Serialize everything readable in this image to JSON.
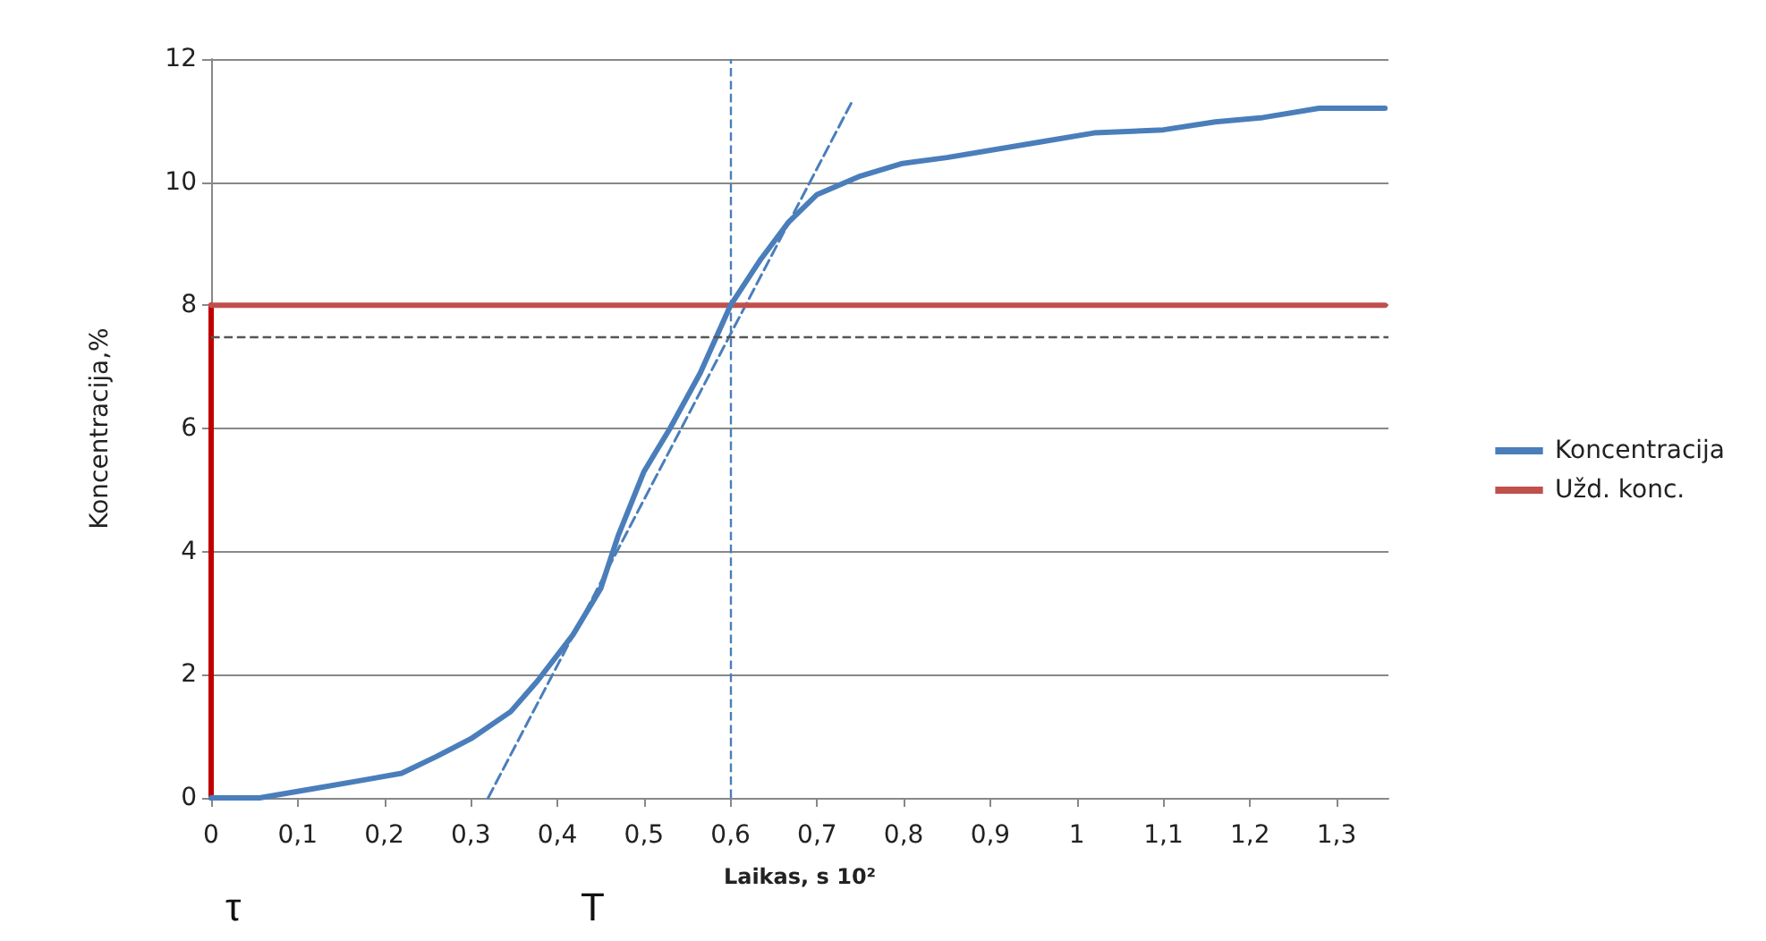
{
  "chart_data": {
    "type": "line",
    "xlabel": "Laikas, s 10²",
    "ylabel": "Koncentracija,%",
    "xlim": [
      0,
      1.36
    ],
    "xticks": [
      0,
      {
        "value": 0.1,
        "label": "0,1"
      },
      {
        "value": 0.2,
        "label": "0,2"
      },
      {
        "value": 0.3,
        "label": "0,3"
      },
      {
        "value": 0.4,
        "label": "0,4"
      },
      {
        "value": 0.5,
        "label": "0,5"
      },
      {
        "value": 0.6,
        "label": "0,6"
      },
      {
        "value": 0.7,
        "label": "0,7"
      },
      {
        "value": 0.8,
        "label": "0,8"
      },
      {
        "value": 0.9,
        "label": "0,9"
      },
      1,
      {
        "value": 1.1,
        "label": "1,1"
      },
      {
        "value": 1.2,
        "label": "1,2"
      },
      {
        "value": 1.3,
        "label": "1,3"
      }
    ],
    "ylim": [
      0,
      12
    ],
    "yticks": [
      0,
      2,
      4,
      6,
      8,
      10,
      12
    ],
    "grid": "y",
    "legend": "right",
    "marker": "none",
    "series": [
      {
        "name": "Koncentracija",
        "color": "#4a7ebb",
        "line_style": "solid",
        "x": [
          0,
          0.056,
          0.118,
          0.18,
          0.22,
          0.26,
          0.3,
          0.346,
          0.377,
          0.418,
          0.45,
          0.47,
          0.5,
          0.53,
          0.565,
          0.6,
          0.635,
          0.667,
          0.7,
          0.75,
          0.797,
          0.85,
          0.956,
          1.02,
          1.1,
          1.16,
          1.215,
          1.28,
          1.356
        ],
        "values": [
          0,
          0,
          0.15,
          0.3,
          0.4,
          0.67,
          0.96,
          1.4,
          1.9,
          2.65,
          3.4,
          4.25,
          5.3,
          6.0,
          6.9,
          8.0,
          8.75,
          9.35,
          9.8,
          10.1,
          10.3,
          10.4,
          10.65,
          10.8,
          10.85,
          10.98,
          11.05,
          11.2,
          11.2
        ]
      },
      {
        "name": "Užd. konc.",
        "color": "#c0504d",
        "line_style": "solid",
        "x": [
          0,
          1.356
        ],
        "values": [
          8,
          8
        ]
      },
      {
        "color": "#c00000",
        "line_style": "solid",
        "x": [
          0,
          0
        ],
        "values": [
          0,
          8
        ]
      },
      {
        "color": "#4a7ebb",
        "line_style": "dashed",
        "x": [
          0.32,
          0.74
        ],
        "values": [
          0,
          11.3
        ]
      }
    ],
    "ref_lines": [
      {
        "axis": "x",
        "value": 0.6,
        "color": "#4a7ebb",
        "line_style": "dashed"
      },
      {
        "axis": "y",
        "value": 7.5,
        "color": "#555555",
        "line_style": "dashed"
      }
    ],
    "annotations": [
      "τ",
      "T"
    ]
  }
}
